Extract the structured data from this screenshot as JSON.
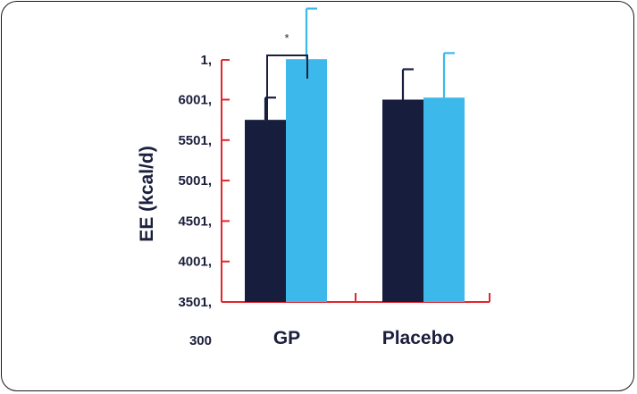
{
  "chart_data": {
    "type": "bar",
    "title": "",
    "ylabel": "EE (kcal/d)",
    "xlabel": "",
    "ytick_labels": [
      "300",
      "3501,",
      "4001,",
      "4501,",
      "5001,",
      "5501,",
      "6001,",
      "1,"
    ],
    "categories": [
      "GP",
      "Placebo"
    ],
    "ylim_index": [
      0,
      7
    ],
    "series": [
      {
        "color": "#161d3d",
        "values": [
          4.5,
          5.0
        ],
        "errors": [
          0.55,
          0.75
        ]
      },
      {
        "color": "#3cb8ea",
        "values": [
          6.0,
          5.05
        ],
        "errors": [
          1.25,
          1.1
        ]
      }
    ],
    "significance": {
      "label": "*",
      "category": "GP"
    },
    "colors": {
      "axis": "#e0262e",
      "text": "#1b1f3b",
      "dark": "#161d3d",
      "light": "#3cb8ea"
    }
  }
}
